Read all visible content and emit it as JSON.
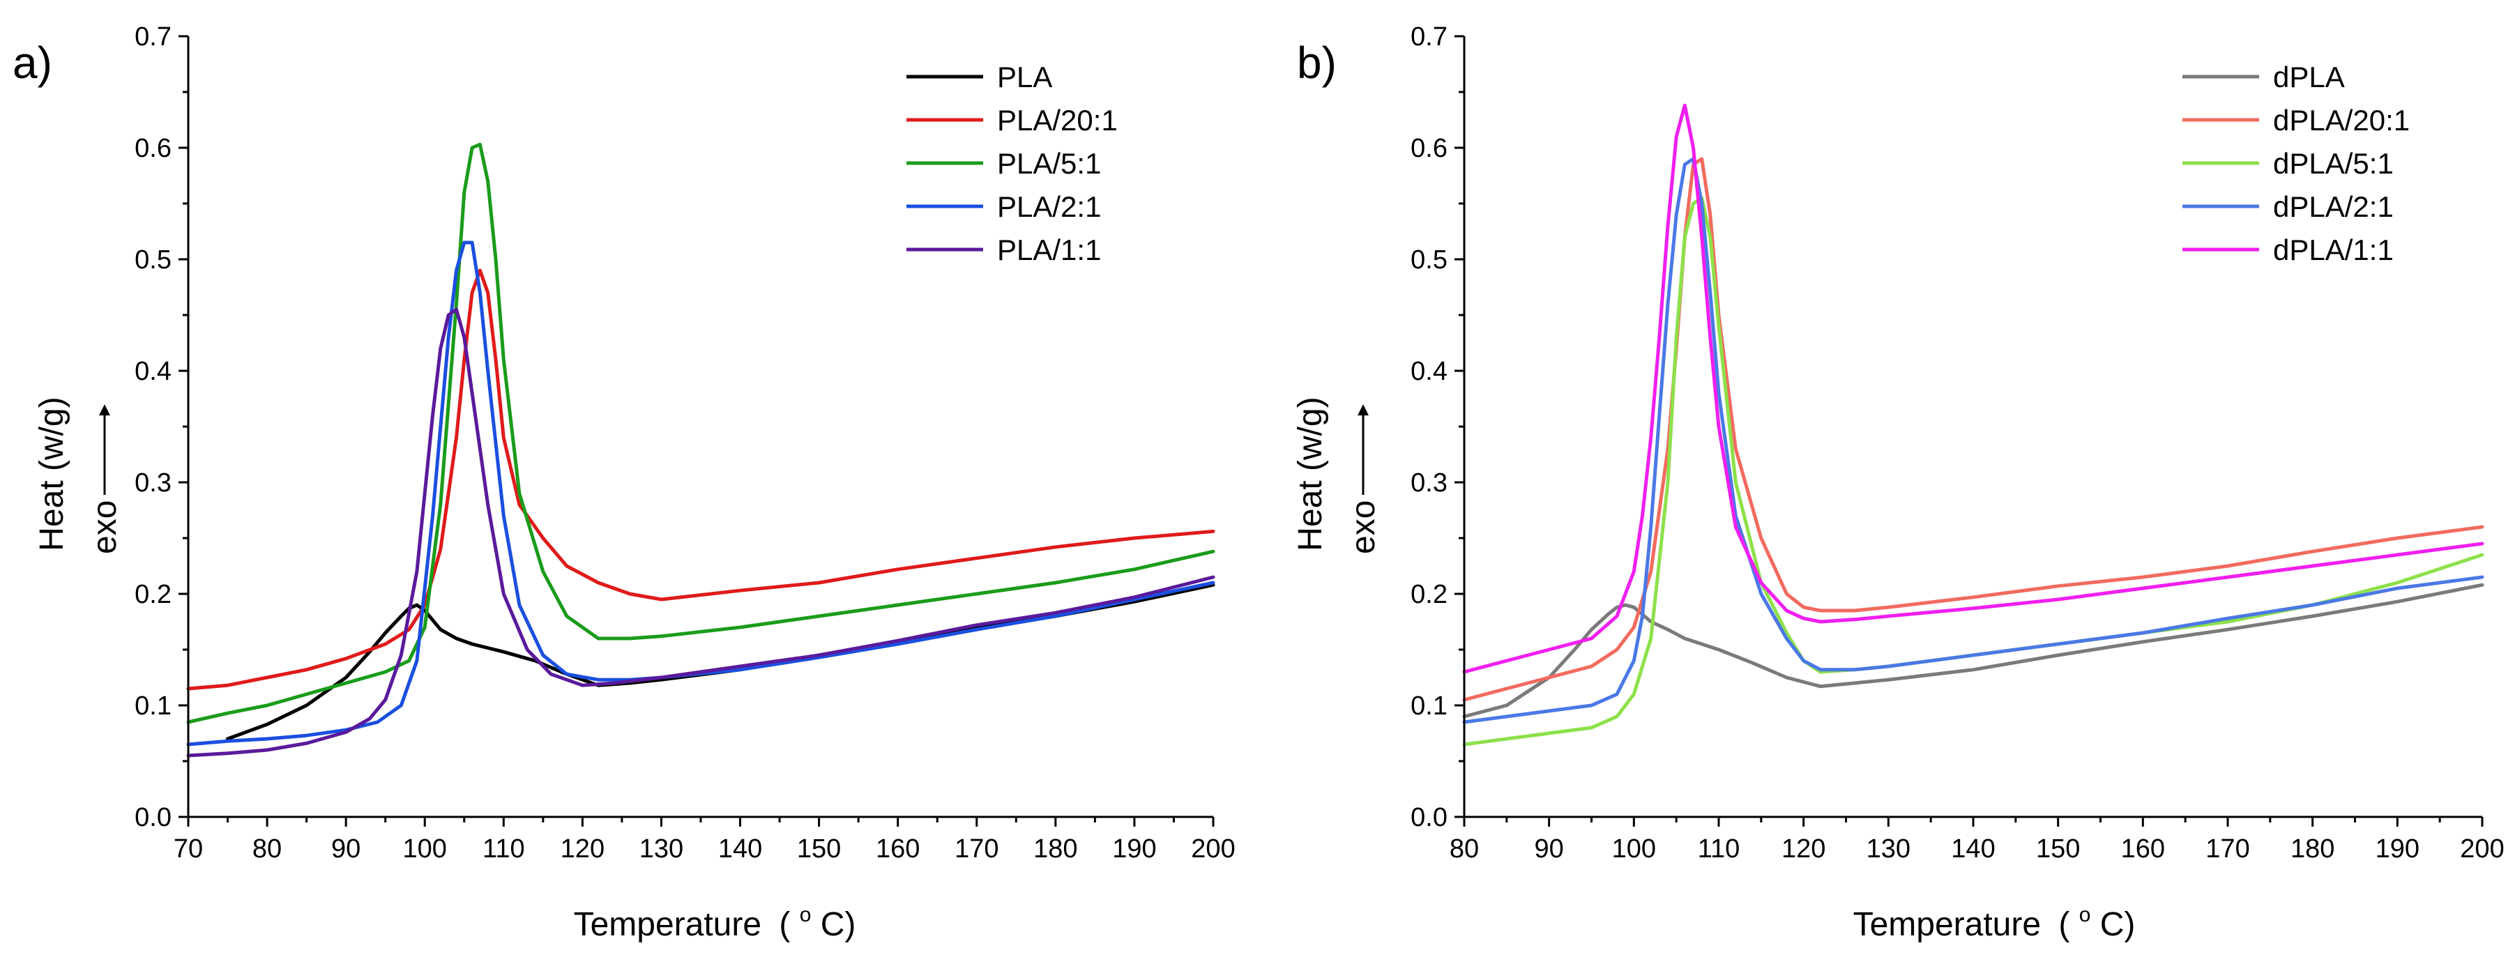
{
  "chart_data": [
    {
      "type": "line",
      "panel_label": "a)",
      "title": "",
      "xlabel": "Temperature",
      "xlabel_unit_prefix": "(",
      "xlabel_unit_sup": "o",
      "xlabel_unit_rest": "C)",
      "ylabel": "Heat (w/g)",
      "ylabel2": "exo",
      "xlim": [
        70,
        200
      ],
      "ylim": [
        0.0,
        0.7
      ],
      "xticks": [
        70,
        80,
        90,
        100,
        110,
        120,
        130,
        140,
        150,
        160,
        170,
        180,
        190,
        200
      ],
      "yticks": [
        0.0,
        0.1,
        0.2,
        0.3,
        0.4,
        0.5,
        0.6,
        0.7
      ],
      "ytick_labels": [
        "0.0",
        "0.1",
        "0.2",
        "0.3",
        "0.4",
        "0.5",
        "0.6",
        "0.7"
      ],
      "legend_position": "top-right",
      "series": [
        {
          "name": "PLA",
          "color": "#000000",
          "x": [
            75,
            80,
            85,
            90,
            93,
            95,
            97,
            98,
            99,
            100,
            102,
            104,
            106,
            110,
            114,
            118,
            122,
            126,
            130,
            140,
            150,
            160,
            170,
            180,
            190,
            200
          ],
          "y": [
            0.07,
            0.083,
            0.1,
            0.125,
            0.148,
            0.165,
            0.18,
            0.187,
            0.19,
            0.185,
            0.168,
            0.16,
            0.155,
            0.148,
            0.14,
            0.128,
            0.118,
            0.12,
            0.123,
            0.132,
            0.145,
            0.157,
            0.17,
            0.18,
            0.193,
            0.208
          ]
        },
        {
          "name": "PLA/20:1",
          "color": "#e01a1a",
          "x": [
            70,
            75,
            80,
            85,
            90,
            95,
            98,
            100,
            102,
            104,
            105,
            106,
            107,
            108,
            109,
            110,
            112,
            115,
            118,
            122,
            126,
            130,
            140,
            150,
            160,
            170,
            180,
            190,
            200
          ],
          "y": [
            0.115,
            0.118,
            0.125,
            0.132,
            0.142,
            0.155,
            0.168,
            0.19,
            0.24,
            0.34,
            0.41,
            0.47,
            0.49,
            0.47,
            0.41,
            0.34,
            0.28,
            0.25,
            0.225,
            0.21,
            0.2,
            0.195,
            0.203,
            0.21,
            0.222,
            0.232,
            0.242,
            0.25,
            0.256
          ]
        },
        {
          "name": "PLA/5:1",
          "color": "#1a9c1a",
          "x": [
            70,
            75,
            80,
            85,
            90,
            95,
            98,
            100,
            102,
            104,
            105,
            106,
            107,
            108,
            109,
            110,
            112,
            115,
            118,
            122,
            126,
            130,
            140,
            150,
            160,
            170,
            180,
            190,
            200
          ],
          "y": [
            0.085,
            0.093,
            0.1,
            0.11,
            0.12,
            0.13,
            0.14,
            0.17,
            0.28,
            0.46,
            0.56,
            0.6,
            0.603,
            0.57,
            0.5,
            0.41,
            0.29,
            0.22,
            0.18,
            0.16,
            0.16,
            0.162,
            0.17,
            0.18,
            0.19,
            0.2,
            0.21,
            0.222,
            0.238
          ]
        },
        {
          "name": "PLA/2:1",
          "color": "#1a4fe0",
          "x": [
            70,
            75,
            80,
            85,
            90,
            94,
            97,
            99,
            101,
            103,
            104,
            105,
            106,
            107,
            108,
            110,
            112,
            115,
            118,
            122,
            126,
            130,
            140,
            150,
            160,
            170,
            180,
            190,
            200
          ],
          "y": [
            0.065,
            0.068,
            0.07,
            0.073,
            0.078,
            0.085,
            0.1,
            0.14,
            0.27,
            0.43,
            0.49,
            0.515,
            0.515,
            0.47,
            0.4,
            0.27,
            0.19,
            0.145,
            0.128,
            0.123,
            0.123,
            0.125,
            0.132,
            0.143,
            0.155,
            0.168,
            0.18,
            0.195,
            0.21
          ]
        },
        {
          "name": "PLA/1:1",
          "color": "#5a1a9c",
          "x": [
            70,
            75,
            80,
            85,
            90,
            93,
            95,
            97,
            99,
            100,
            101,
            102,
            103,
            104,
            105,
            106,
            108,
            110,
            113,
            116,
            120,
            124,
            130,
            140,
            150,
            160,
            170,
            180,
            190,
            200
          ],
          "y": [
            0.055,
            0.057,
            0.06,
            0.066,
            0.076,
            0.088,
            0.105,
            0.145,
            0.22,
            0.29,
            0.36,
            0.42,
            0.45,
            0.455,
            0.43,
            0.38,
            0.28,
            0.2,
            0.15,
            0.128,
            0.118,
            0.12,
            0.125,
            0.135,
            0.145,
            0.158,
            0.172,
            0.183,
            0.197,
            0.215
          ]
        }
      ]
    },
    {
      "type": "line",
      "panel_label": "b)",
      "title": "",
      "xlabel": "Temperature",
      "xlabel_unit_prefix": "(",
      "xlabel_unit_sup": "o",
      "xlabel_unit_rest": "C)",
      "ylabel": "Heat (w/g)",
      "ylabel2": "exo",
      "xlim": [
        80,
        200
      ],
      "ylim": [
        0.0,
        0.7
      ],
      "xticks": [
        80,
        90,
        100,
        110,
        120,
        130,
        140,
        150,
        160,
        170,
        180,
        190,
        200
      ],
      "yticks": [
        0.0,
        0.1,
        0.2,
        0.3,
        0.4,
        0.5,
        0.6,
        0.7
      ],
      "ytick_labels": [
        "0.0",
        "0.1",
        "0.2",
        "0.3",
        "0.4",
        "0.5",
        "0.6",
        "0.7"
      ],
      "legend_position": "top-right",
      "series": [
        {
          "name": "dPLA",
          "color": "#7a7a7a",
          "x": [
            80,
            85,
            90,
            93,
            95,
            97,
            98,
            99,
            100,
            102,
            104,
            106,
            110,
            114,
            118,
            122,
            126,
            130,
            140,
            150,
            160,
            170,
            180,
            190,
            200
          ],
          "y": [
            0.09,
            0.1,
            0.125,
            0.15,
            0.168,
            0.182,
            0.188,
            0.19,
            0.188,
            0.175,
            0.168,
            0.16,
            0.15,
            0.138,
            0.125,
            0.117,
            0.12,
            0.123,
            0.132,
            0.145,
            0.157,
            0.168,
            0.18,
            0.193,
            0.208
          ]
        },
        {
          "name": "dPLA/20:1",
          "color": "#f26a5e",
          "x": [
            80,
            85,
            90,
            95,
            98,
            100,
            102,
            104,
            105,
            106,
            107,
            108,
            109,
            110,
            112,
            115,
            118,
            120,
            122,
            126,
            130,
            140,
            150,
            160,
            170,
            180,
            190,
            200
          ],
          "y": [
            0.105,
            0.115,
            0.125,
            0.135,
            0.15,
            0.17,
            0.22,
            0.33,
            0.42,
            0.52,
            0.585,
            0.59,
            0.54,
            0.45,
            0.33,
            0.25,
            0.2,
            0.188,
            0.185,
            0.185,
            0.188,
            0.197,
            0.207,
            0.215,
            0.225,
            0.238,
            0.25,
            0.26
          ]
        },
        {
          "name": "dPLA/5:1",
          "color": "#8de04a",
          "x": [
            80,
            85,
            90,
            95,
            98,
            100,
            102,
            104,
            105,
            106,
            107,
            108,
            109,
            110,
            112,
            115,
            118,
            120,
            122,
            126,
            130,
            140,
            150,
            160,
            170,
            180,
            190,
            200
          ],
          "y": [
            0.065,
            0.07,
            0.075,
            0.08,
            0.09,
            0.11,
            0.16,
            0.3,
            0.43,
            0.52,
            0.55,
            0.555,
            0.52,
            0.44,
            0.3,
            0.21,
            0.165,
            0.14,
            0.13,
            0.132,
            0.135,
            0.145,
            0.155,
            0.165,
            0.175,
            0.19,
            0.21,
            0.235
          ]
        },
        {
          "name": "dPLA/2:1",
          "color": "#4a78e6",
          "x": [
            80,
            85,
            90,
            95,
            98,
            100,
            101,
            102,
            103,
            104,
            105,
            106,
            107,
            108,
            109,
            110,
            112,
            115,
            118,
            120,
            122,
            126,
            130,
            140,
            150,
            160,
            170,
            180,
            190,
            200
          ],
          "y": [
            0.085,
            0.09,
            0.095,
            0.1,
            0.11,
            0.14,
            0.18,
            0.26,
            0.36,
            0.46,
            0.54,
            0.585,
            0.59,
            0.55,
            0.47,
            0.38,
            0.27,
            0.2,
            0.16,
            0.14,
            0.132,
            0.132,
            0.135,
            0.145,
            0.155,
            0.165,
            0.178,
            0.19,
            0.205,
            0.215
          ]
        },
        {
          "name": "dPLA/1:1",
          "color": "#f01ef0",
          "x": [
            80,
            85,
            90,
            95,
            98,
            100,
            101,
            102,
            103,
            104,
            105,
            106,
            107,
            108,
            109,
            110,
            112,
            115,
            118,
            120,
            122,
            126,
            130,
            140,
            150,
            160,
            170,
            180,
            190,
            200
          ],
          "y": [
            0.13,
            0.14,
            0.15,
            0.16,
            0.18,
            0.22,
            0.27,
            0.34,
            0.43,
            0.53,
            0.61,
            0.638,
            0.6,
            0.52,
            0.43,
            0.35,
            0.26,
            0.21,
            0.185,
            0.178,
            0.175,
            0.177,
            0.18,
            0.187,
            0.195,
            0.205,
            0.215,
            0.225,
            0.235,
            0.245
          ]
        }
      ]
    }
  ]
}
